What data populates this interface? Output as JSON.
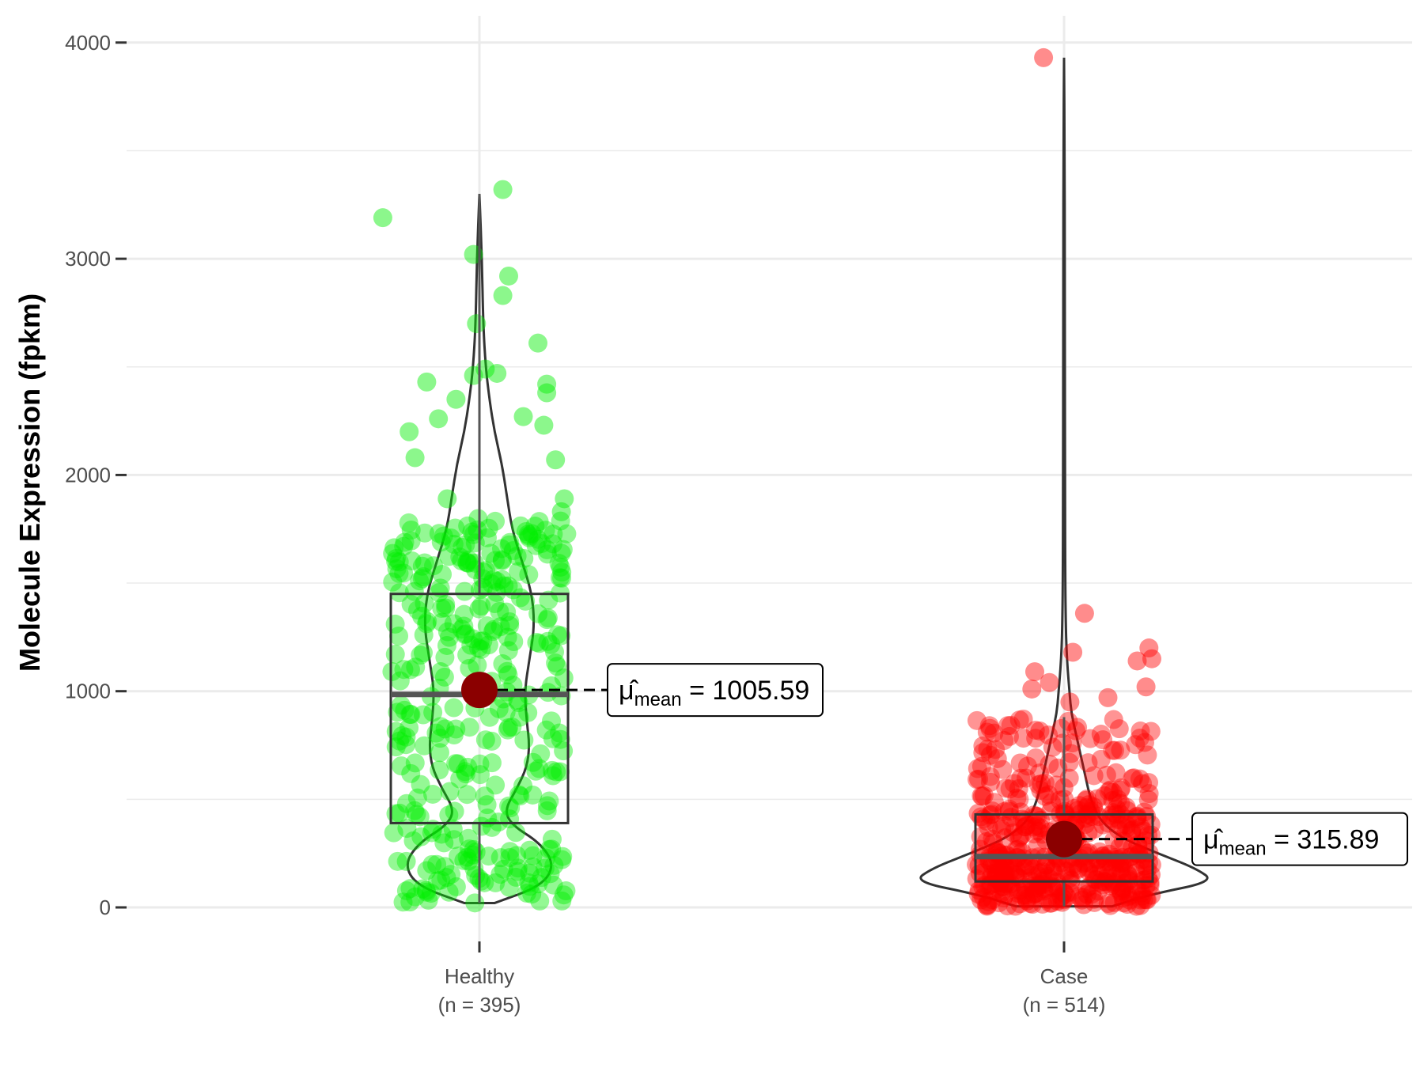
{
  "chart_data": {
    "type": "violin-box-scatter",
    "ylabel": "Molecule Expression (fpkm)",
    "xlabel": "",
    "ylim": [
      -170,
      4170
    ],
    "y_ticks": [
      0,
      1000,
      2000,
      3000,
      4000
    ],
    "grid": true,
    "legend": "none",
    "groups": [
      {
        "name": "Healthy",
        "n_label": "(n = 395)",
        "n": 395,
        "color": "#00ee00",
        "box": {
          "q1": 390,
          "median": 985,
          "q3": 1450,
          "whisker_low": 20,
          "whisker_high": 3300
        },
        "mean": 1005.59,
        "mean_label": "1005.59",
        "violin": [
          [
            20,
            0.06
          ],
          [
            100,
            0.25
          ],
          [
            200,
            0.3
          ],
          [
            300,
            0.24
          ],
          [
            380,
            0.13
          ],
          [
            450,
            0.1
          ],
          [
            550,
            0.15
          ],
          [
            650,
            0.19
          ],
          [
            750,
            0.2
          ],
          [
            850,
            0.19
          ],
          [
            1000,
            0.18
          ],
          [
            1150,
            0.2
          ],
          [
            1300,
            0.22
          ],
          [
            1450,
            0.21
          ],
          [
            1600,
            0.17
          ],
          [
            1750,
            0.13
          ],
          [
            1900,
            0.11
          ],
          [
            2050,
            0.09
          ],
          [
            2200,
            0.06
          ],
          [
            2350,
            0.04
          ],
          [
            2500,
            0.025
          ],
          [
            2700,
            0.015
          ],
          [
            3000,
            0.01
          ],
          [
            3300,
            0.0
          ]
        ],
        "outlier_points": [
          [
            -0.33,
            3190
          ],
          [
            0.08,
            3320
          ],
          [
            -0.02,
            3020
          ],
          [
            0.1,
            2920
          ],
          [
            0.08,
            2830
          ],
          [
            -0.01,
            2700
          ],
          [
            0.2,
            2610
          ],
          [
            -0.18,
            2430
          ],
          [
            0.02,
            2490
          ],
          [
            0.06,
            2470
          ],
          [
            0.23,
            2420
          ],
          [
            0.23,
            2380
          ],
          [
            -0.24,
            2200
          ],
          [
            -0.14,
            2260
          ],
          [
            -0.22,
            2080
          ],
          [
            0.22,
            2230
          ],
          [
            0.15,
            2270
          ],
          [
            -0.08,
            2350
          ],
          [
            0.26,
            2070
          ],
          [
            -0.11,
            1890
          ],
          [
            0.29,
            1890
          ],
          [
            0.28,
            1830
          ],
          [
            -0.02,
            2460
          ]
        ]
      },
      {
        "name": "Case",
        "n_label": "(n = 514)",
        "n": 514,
        "color": "#ff0000",
        "box": {
          "q1": 120,
          "median": 235,
          "q3": 430,
          "whisker_low": 5,
          "whisker_high": 880
        },
        "mean": 315.89,
        "mean_label": "315.89",
        "violin": [
          [
            5,
            0.4
          ],
          [
            60,
            0.72
          ],
          [
            120,
            1.25
          ],
          [
            180,
            1.1
          ],
          [
            250,
            0.78
          ],
          [
            320,
            0.48
          ],
          [
            400,
            0.3
          ],
          [
            500,
            0.22
          ],
          [
            600,
            0.18
          ],
          [
            700,
            0.14
          ],
          [
            800,
            0.1
          ],
          [
            900,
            0.06
          ],
          [
            1000,
            0.045
          ],
          [
            1100,
            0.03
          ],
          [
            1200,
            0.02
          ],
          [
            1300,
            0.015
          ],
          [
            1500,
            0.01
          ],
          [
            2000,
            0.008
          ],
          [
            2500,
            0.007
          ],
          [
            3000,
            0.006
          ],
          [
            3500,
            0.005
          ],
          [
            3930,
            0.0
          ]
        ],
        "outlier_points": [
          [
            -0.07,
            3930
          ],
          [
            0.07,
            1360
          ],
          [
            0.29,
            1200
          ],
          [
            0.25,
            1140
          ],
          [
            0.3,
            1150
          ],
          [
            0.03,
            1180
          ],
          [
            -0.1,
            1090
          ],
          [
            -0.11,
            1010
          ],
          [
            0.28,
            1020
          ],
          [
            -0.05,
            1040
          ],
          [
            0.15,
            970
          ],
          [
            0.02,
            950
          ]
        ]
      }
    ]
  }
}
